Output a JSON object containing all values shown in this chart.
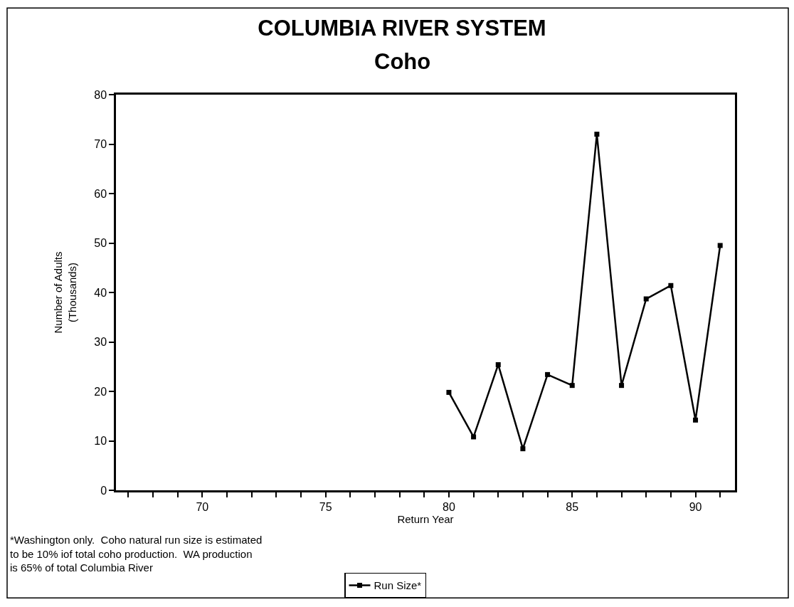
{
  "chart_data": {
    "type": "line",
    "title": "COLUMBIA RIVER SYSTEM",
    "subtitle": "Coho",
    "xlabel": "Return Year",
    "ylabel": "Number of Adults\n(Thousands)",
    "annotations": [
      "*Washington only.  Coho natural run size is estimated\nto be 10% iof total coho production.  WA production\nis 65% of total Columbia River"
    ],
    "x": [
      80,
      81,
      82,
      83,
      84,
      85,
      86,
      87,
      88,
      89,
      90,
      91
    ],
    "series": [
      {
        "name": "Run Size*",
        "color": "#000000",
        "values": [
          19.8,
          10.8,
          25.4,
          8.4,
          23.4,
          21.2,
          72.0,
          21.2,
          38.7,
          41.4,
          14.2,
          49.5
        ]
      }
    ],
    "xlim": [
      66.5,
      91.6
    ],
    "ylim": [
      0,
      80
    ],
    "xticks": [
      {
        "value": 67,
        "label": null
      },
      {
        "value": 68,
        "label": null
      },
      {
        "value": 69,
        "label": null
      },
      70,
      {
        "value": 71,
        "label": null
      },
      {
        "value": 72,
        "label": null
      },
      {
        "value": 73,
        "label": null
      },
      {
        "value": 74,
        "label": null
      },
      75,
      {
        "value": 76,
        "label": null
      },
      {
        "value": 77,
        "label": null
      },
      {
        "value": 78,
        "label": null
      },
      {
        "value": 79,
        "label": null
      },
      80,
      {
        "value": 81,
        "label": null
      },
      {
        "value": 82,
        "label": null
      },
      {
        "value": 83,
        "label": null
      },
      {
        "value": 84,
        "label": null
      },
      85,
      {
        "value": 86,
        "label": null
      },
      {
        "value": 87,
        "label": null
      },
      {
        "value": 88,
        "label": null
      },
      {
        "value": 89,
        "label": null
      },
      90,
      {
        "value": 91,
        "label": null
      }
    ],
    "yticks": [
      0,
      10,
      20,
      30,
      40,
      50,
      60,
      70,
      80
    ],
    "legend": "bottom",
    "marker": "square",
    "line_style": "solid"
  }
}
